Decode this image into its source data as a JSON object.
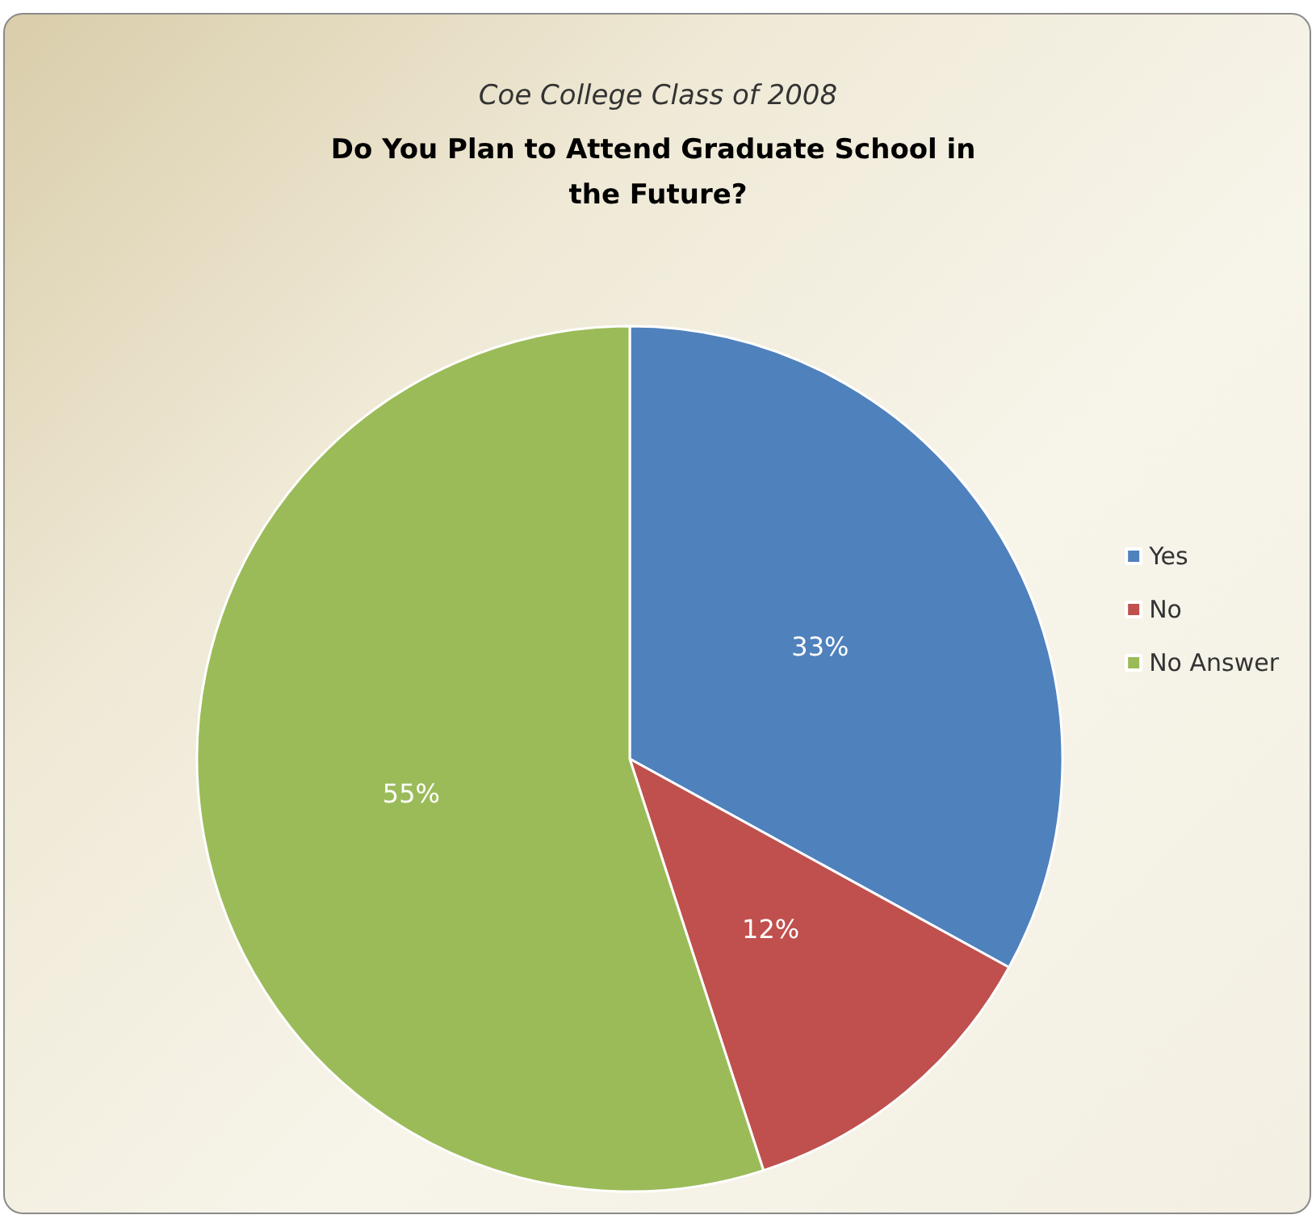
{
  "chart_data": {
    "type": "pie",
    "title": "Do You Plan to Attend Graduate School in the Future?",
    "subtitle": "Coe College Class of 2008",
    "categories": [
      "Yes",
      "No",
      "No Answer"
    ],
    "values": [
      33,
      12,
      55
    ],
    "colors": [
      "#4f81bd",
      "#c0504d",
      "#9bbb59"
    ],
    "value_labels": [
      "33%",
      "12%",
      "55%"
    ],
    "legend": "right"
  }
}
